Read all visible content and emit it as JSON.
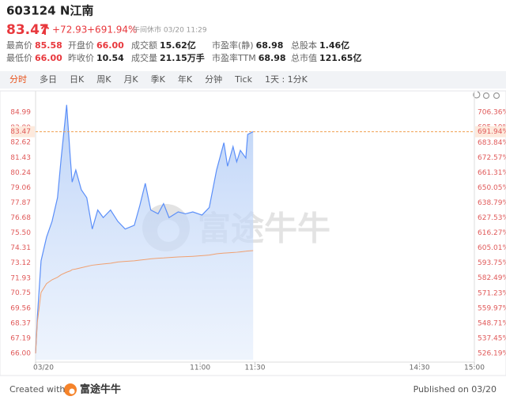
{
  "header": {
    "code": "603124 N江南",
    "price": "83.47",
    "change": "+72.93",
    "change_pct": "+691.94%",
    "status": "午间休市 03/20 11:29"
  },
  "stats": [
    {
      "label": "最高价",
      "value": "85.58",
      "color": "#e8383d"
    },
    {
      "label": "开盘价",
      "value": "66.00",
      "color": "#e8383d"
    },
    {
      "label": "成交额",
      "value": "15.62亿",
      "color": "#222222"
    },
    {
      "label": "市盈率(静)",
      "value": "68.98",
      "color": "#222222"
    },
    {
      "label": "总股本",
      "value": "1.46亿",
      "color": "#222222"
    },
    {
      "label": "最低价",
      "value": "66.00",
      "color": "#e8383d"
    },
    {
      "label": "昨收价",
      "value": "10.54",
      "color": "#222222"
    },
    {
      "label": "成交量",
      "value": "21.15万手",
      "color": "#222222"
    },
    {
      "label": "市盈率TTM",
      "value": "68.98",
      "color": "#222222"
    },
    {
      "label": "总市值",
      "value": "121.65亿",
      "color": "#222222"
    }
  ],
  "tabs": [
    "分时",
    "多日",
    "日K",
    "周K",
    "月K",
    "季K",
    "年K",
    "分钟",
    "Tick",
    "1天 : 1分K"
  ],
  "chart_data": {
    "type": "line",
    "x": [
      0,
      1,
      3,
      6,
      9,
      12,
      14,
      17,
      19,
      20,
      22,
      25,
      28,
      31,
      34,
      37,
      41,
      45,
      49,
      54,
      57,
      60,
      63,
      67,
      70,
      73,
      78,
      82,
      86,
      91,
      95,
      99,
      103,
      105,
      108,
      110,
      112,
      115,
      116,
      119
    ],
    "xlim": [
      0,
      240
    ],
    "xticks": [
      {
        "value": 0,
        "label": "03/20"
      },
      {
        "value": 90,
        "label": "11:00"
      },
      {
        "value": 120,
        "label": "11:30"
      },
      {
        "value": 210,
        "label": "14:30"
      },
      {
        "value": 240,
        "label": "15:00"
      }
    ],
    "series": [
      {
        "name": "价格",
        "color": "#5b8ff9",
        "values": [
          66.0,
          68.93,
          73.3,
          75.16,
          76.4,
          78.27,
          81.39,
          85.58,
          81.39,
          79.5,
          80.45,
          78.9,
          78.27,
          75.8,
          77.3,
          76.7,
          77.3,
          76.4,
          75.8,
          76.1,
          77.65,
          79.4,
          77.3,
          77.0,
          77.8,
          76.7,
          77.15,
          77.0,
          77.15,
          76.9,
          77.5,
          80.45,
          82.6,
          80.75,
          82.3,
          81.1,
          82.0,
          81.4,
          83.26,
          83.47
        ]
      },
      {
        "name": "均价",
        "color": "#f0a070",
        "values": [
          66.0,
          68.5,
          70.8,
          71.5,
          71.8,
          72.0,
          72.2,
          72.4,
          72.5,
          72.6,
          72.65,
          72.75,
          72.85,
          72.95,
          73.0,
          73.05,
          73.1,
          73.2,
          73.25,
          73.3,
          73.35,
          73.4,
          73.45,
          73.5,
          73.52,
          73.55,
          73.6,
          73.62,
          73.65,
          73.7,
          73.75,
          73.85,
          73.9,
          73.92,
          73.95,
          73.97,
          74.0,
          74.05,
          74.07,
          74.1
        ]
      }
    ],
    "ylim": [
      65.5,
      85.75
    ],
    "yticks": [
      {
        "value": 66,
        "label": "66.00"
      },
      67.19,
      68.37,
      69.56,
      70.75,
      71.93,
      73.12,
      74.31,
      {
        "value": 75.5,
        "label": "75.50"
      },
      76.68,
      77.87,
      79.06,
      80.24,
      81.43,
      82.62,
      {
        "value": 83.8,
        "label": "83.80"
      },
      84.99
    ],
    "y2lim": [
      521.44,
      713.57
    ],
    "y2ticks": [
      {
        "value": 526.19,
        "label": "526.19%"
      },
      {
        "value": 537.45,
        "label": "537.45%"
      },
      {
        "value": 548.71,
        "label": "548.71%"
      },
      {
        "value": 559.97,
        "label": "559.97%"
      },
      {
        "value": 571.23,
        "label": "571.23%"
      },
      {
        "value": 582.49,
        "label": "582.49%"
      },
      {
        "value": 593.75,
        "label": "593.75%"
      },
      {
        "value": 605.01,
        "label": "605.01%"
      },
      {
        "value": 616.27,
        "label": "616.27%"
      },
      {
        "value": 627.53,
        "label": "627.53%"
      },
      {
        "value": 638.79,
        "label": "638.79%"
      },
      {
        "value": 650.05,
        "label": "650.05%"
      },
      {
        "value": 661.31,
        "label": "661.31%"
      },
      {
        "value": 672.57,
        "label": "672.57%"
      },
      {
        "value": 683.84,
        "label": "683.84%"
      },
      {
        "value": 695.1,
        "label": "695.10%"
      },
      {
        "value": 706.36,
        "label": "706.36%"
      }
    ],
    "reference": {
      "value": 83.47,
      "pct": {
        "value": 691.94,
        "label": "691.94%"
      }
    },
    "axis_color": "#e05a5a"
  },
  "watermark": "富途牛牛",
  "footer": {
    "created": "Created with",
    "brand": "富途牛牛",
    "published": "Published on 03/20"
  }
}
